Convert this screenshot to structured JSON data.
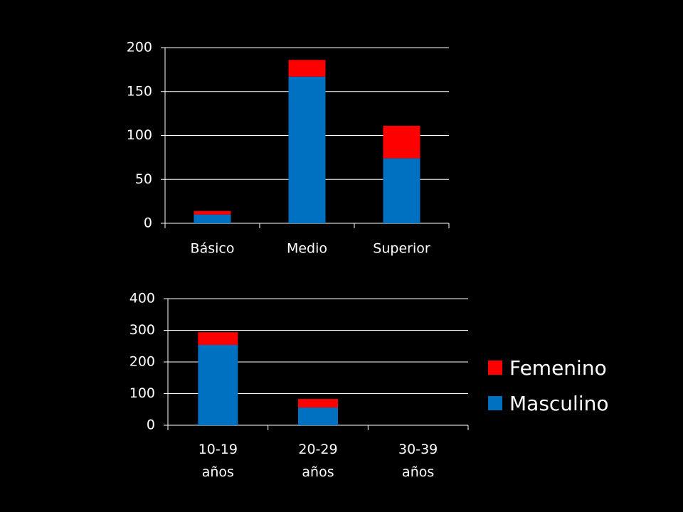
{
  "chart_data": [
    {
      "type": "stacked_bar",
      "categories": [
        "Básico",
        "Medio",
        "Superior"
      ],
      "series": [
        {
          "color": "#0070c0",
          "values": [
            10,
            167,
            74
          ]
        },
        {
          "color": "#ff0000",
          "values": [
            4,
            19,
            37
          ]
        }
      ],
      "ylim": [
        0,
        200
      ],
      "yticks": [
        0,
        50,
        100,
        150,
        200
      ],
      "grid": true
    },
    {
      "type": "stacked_bar",
      "categories": [
        "10-19 años",
        "20-29 años",
        "30-39 años"
      ],
      "series": [
        {
          "name": "Masculino",
          "color": "#0070c0",
          "values": [
            254,
            56,
            0
          ]
        },
        {
          "name": "Femenino",
          "color": "#ff0000",
          "values": [
            40,
            27,
            0
          ]
        }
      ],
      "ylim": [
        0,
        400
      ],
      "yticks": [
        0,
        100,
        200,
        300,
        400
      ],
      "grid": true,
      "legend": "right"
    }
  ]
}
